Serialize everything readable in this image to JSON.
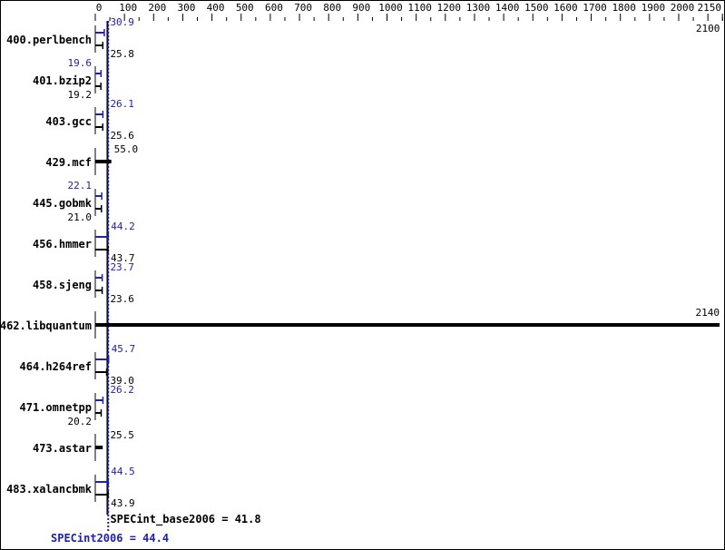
{
  "chart_data": {
    "type": "bar",
    "orientation": "horizontal",
    "xlim": [
      0,
      2150
    ],
    "xticks": [
      0,
      100,
      200,
      300,
      400,
      500,
      600,
      700,
      800,
      900,
      1000,
      1100,
      1200,
      1300,
      1400,
      1500,
      1600,
      1700,
      1800,
      1900,
      2000,
      2100,
      2150
    ],
    "grid": false,
    "categories": [
      "400.perlbench",
      "401.bzip2",
      "403.gcc",
      "429.mcf",
      "445.gobmk",
      "456.hmmer",
      "458.sjeng",
      "462.libquantum",
      "464.h264ref",
      "471.omnetpp",
      "473.astar",
      "483.xalancbmk"
    ],
    "series": [
      {
        "name": "SPECint2006",
        "color": "#2020b0",
        "values": [
          30.9,
          19.6,
          26.1,
          null,
          22.1,
          44.2,
          23.7,
          null,
          45.7,
          26.2,
          null,
          44.5
        ]
      },
      {
        "name": "SPECint_base2006",
        "color": "#000000",
        "values": [
          25.8,
          19.2,
          25.6,
          55.0,
          21.0,
          43.7,
          23.6,
          2140,
          39.0,
          20.2,
          25.5,
          43.9
        ]
      }
    ],
    "summary": {
      "base_label": "SPECint_base2006 = 41.8",
      "base_value": 41.8,
      "peak_label": "SPECint2006 = 44.4",
      "peak_value": 44.4
    }
  }
}
